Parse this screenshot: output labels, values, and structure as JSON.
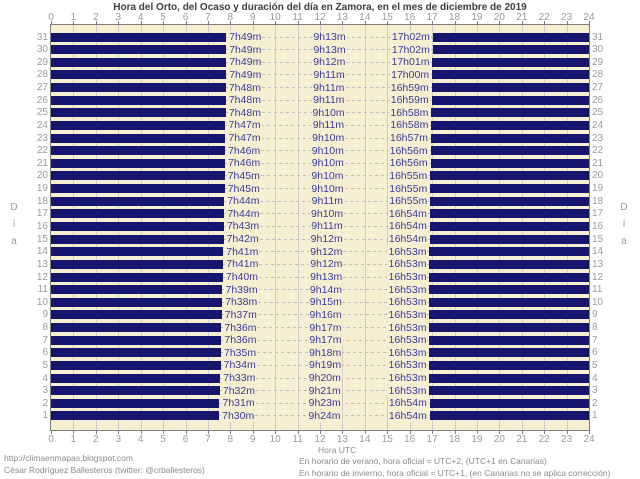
{
  "title": "Hora del Orto, del Ocaso y duración del día en Zamora, en el mes de diciembre de 2019",
  "footer": {
    "left": [
      "http://climaenmapas.blogspot.com",
      "César Rodríguez Ballesteros (twitter: @crballesteros)"
    ],
    "right": [
      "En horario de verano, hora oficial = UTC+2, (UTC+1 en Canarias)",
      "En horario de invierno, hora oficial = UTC+1, (en Canarias no se aplica corrección)"
    ]
  },
  "colors": {
    "bar": "#16166F",
    "bar_label": "#3A3A9C",
    "plot_background": "#F7EFD2",
    "plot_border": "#7F7F7F",
    "grid_vertical": "#CCCCCC",
    "row_dash": "#BDBDBD",
    "axis_text": "#9A9A9A",
    "title_text": "#3D3D3D",
    "footer_text": "#8A8A8A"
  },
  "chart_data": {
    "type": "bar",
    "orientation": "horizontal-span",
    "description": "Navy bars mark night (00:00 to sunrise, and sunset to 24:00); cream gap is daylight. Labels per row: sunrise time, day duration, sunset time.",
    "title": "Hora del Orto, del Ocaso y duración del día en Zamora, en el mes de diciembre de 2019",
    "xlabel": "Hora UTC",
    "ylabel": "Día",
    "ylabel_chars": [
      "D",
      "í",
      "a"
    ],
    "xlim": [
      0,
      24
    ],
    "x_ticks": [
      0,
      1,
      2,
      3,
      4,
      5,
      6,
      7,
      8,
      9,
      10,
      11,
      12,
      13,
      14,
      15,
      16,
      17,
      18,
      19,
      20,
      21,
      22,
      23,
      24
    ],
    "grid": true,
    "days": [
      {
        "day": 31,
        "orto": "7h49m",
        "duracion": "9h13m",
        "ocaso": "17h02m"
      },
      {
        "day": 30,
        "orto": "7h49m",
        "duracion": "9h13m",
        "ocaso": "17h02m"
      },
      {
        "day": 29,
        "orto": "7h49m",
        "duracion": "9h12m",
        "ocaso": "17h01m"
      },
      {
        "day": 28,
        "orto": "7h49m",
        "duracion": "9h11m",
        "ocaso": "17h00m"
      },
      {
        "day": 27,
        "orto": "7h48m",
        "duracion": "9h11m",
        "ocaso": "16h59m"
      },
      {
        "day": 26,
        "orto": "7h48m",
        "duracion": "9h11m",
        "ocaso": "16h59m"
      },
      {
        "day": 25,
        "orto": "7h48m",
        "duracion": "9h10m",
        "ocaso": "16h58m"
      },
      {
        "day": 24,
        "orto": "7h47m",
        "duracion": "9h11m",
        "ocaso": "16h58m"
      },
      {
        "day": 23,
        "orto": "7h47m",
        "duracion": "9h10m",
        "ocaso": "16h57m"
      },
      {
        "day": 22,
        "orto": "7h46m",
        "duracion": "9h10m",
        "ocaso": "16h56m"
      },
      {
        "day": 21,
        "orto": "7h46m",
        "duracion": "9h10m",
        "ocaso": "16h56m"
      },
      {
        "day": 20,
        "orto": "7h45m",
        "duracion": "9h10m",
        "ocaso": "16h55m"
      },
      {
        "day": 19,
        "orto": "7h45m",
        "duracion": "9h10m",
        "ocaso": "16h55m"
      },
      {
        "day": 18,
        "orto": "7h44m",
        "duracion": "9h11m",
        "ocaso": "16h55m"
      },
      {
        "day": 17,
        "orto": "7h44m",
        "duracion": "9h10m",
        "ocaso": "16h54m"
      },
      {
        "day": 16,
        "orto": "7h43m",
        "duracion": "9h11m",
        "ocaso": "16h54m"
      },
      {
        "day": 15,
        "orto": "7h42m",
        "duracion": "9h12m",
        "ocaso": "16h54m"
      },
      {
        "day": 14,
        "orto": "7h41m",
        "duracion": "9h12m",
        "ocaso": "16h53m"
      },
      {
        "day": 13,
        "orto": "7h41m",
        "duracion": "9h12m",
        "ocaso": "16h53m"
      },
      {
        "day": 12,
        "orto": "7h40m",
        "duracion": "9h13m",
        "ocaso": "16h53m"
      },
      {
        "day": 11,
        "orto": "7h39m",
        "duracion": "9h14m",
        "ocaso": "16h53m"
      },
      {
        "day": 10,
        "orto": "7h38m",
        "duracion": "9h15m",
        "ocaso": "16h53m"
      },
      {
        "day": 9,
        "orto": "7h37m",
        "duracion": "9h16m",
        "ocaso": "16h53m"
      },
      {
        "day": 8,
        "orto": "7h36m",
        "duracion": "9h17m",
        "ocaso": "16h53m"
      },
      {
        "day": 7,
        "orto": "7h36m",
        "duracion": "9h17m",
        "ocaso": "16h53m"
      },
      {
        "day": 6,
        "orto": "7h35m",
        "duracion": "9h18m",
        "ocaso": "16h53m"
      },
      {
        "day": 5,
        "orto": "7h34m",
        "duracion": "9h19m",
        "ocaso": "16h53m"
      },
      {
        "day": 4,
        "orto": "7h33m",
        "duracion": "9h20m",
        "ocaso": "16h53m"
      },
      {
        "day": 3,
        "orto": "7h32m",
        "duracion": "9h21m",
        "ocaso": "16h53m"
      },
      {
        "day": 2,
        "orto": "7h31m",
        "duracion": "9h23m",
        "ocaso": "16h54m"
      },
      {
        "day": 1,
        "orto": "7h30m",
        "duracion": "9h24m",
        "ocaso": "16h54m"
      }
    ]
  }
}
